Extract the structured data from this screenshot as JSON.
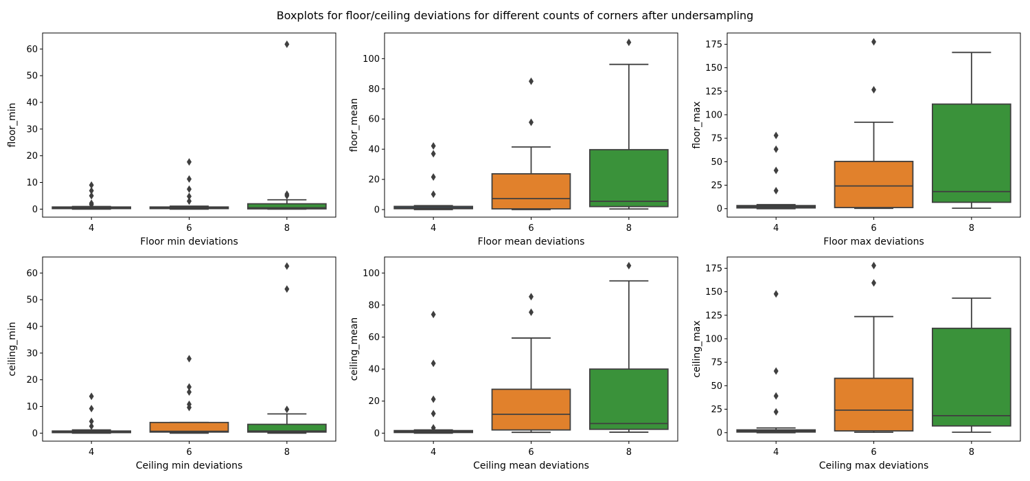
{
  "suptitle": "Boxplots for floor/ceiling deviations for different counts of corners after undersampling",
  "colors": {
    "4": "#3274a1",
    "6": "#e1812c",
    "8": "#3a923a",
    "line": "#3f3f3f"
  },
  "chart_data": [
    {
      "type": "box",
      "title": "",
      "xlabel": "Floor min deviations",
      "ylabel": "floor_min",
      "categories": [
        "4",
        "6",
        "8"
      ],
      "ylim": [
        -3,
        66
      ],
      "yticks": [
        0,
        10,
        20,
        30,
        40,
        50,
        60
      ],
      "boxes": [
        {
          "category": "4",
          "whislo": 0.0,
          "q1": 0.2,
          "median": 0.4,
          "q3": 0.8,
          "whishi": 1.0,
          "fliers": [
            1.7,
            2.2,
            5.0,
            6.9,
            9.0
          ]
        },
        {
          "category": "6",
          "whislo": 0.0,
          "q1": 0.2,
          "median": 0.4,
          "q3": 0.8,
          "whishi": 1.1,
          "fliers": [
            3.0,
            4.8,
            7.5,
            11.3,
            17.7
          ]
        },
        {
          "category": "8",
          "whislo": 0.0,
          "q1": 0.1,
          "median": 0.5,
          "q3": 2.0,
          "whishi": 3.5,
          "fliers": [
            5.0,
            5.6,
            61.8
          ]
        }
      ]
    },
    {
      "type": "box",
      "title": "",
      "xlabel": "Floor mean deviations",
      "ylabel": "floor_mean",
      "categories": [
        "4",
        "6",
        "8"
      ],
      "ylim": [
        -5,
        117
      ],
      "yticks": [
        0,
        20,
        40,
        60,
        80,
        100
      ],
      "boxes": [
        {
          "category": "4",
          "whislo": 0.0,
          "q1": 0.6,
          "median": 1.2,
          "q3": 2.1,
          "whishi": 2.6,
          "fliers": [
            10.2,
            21.6,
            37.0,
            42.2
          ]
        },
        {
          "category": "6",
          "whislo": 0.0,
          "q1": 0.5,
          "median": 7.3,
          "q3": 23.7,
          "whishi": 41.5,
          "fliers": [
            57.8,
            85.0
          ]
        },
        {
          "category": "8",
          "whislo": 0.4,
          "q1": 2.0,
          "median": 5.5,
          "q3": 39.7,
          "whishi": 96.2,
          "fliers": [
            110.8
          ]
        }
      ]
    },
    {
      "type": "box",
      "title": "",
      "xlabel": "Floor max deviations",
      "ylabel": "floor_max",
      "categories": [
        "4",
        "6",
        "8"
      ],
      "ylim": [
        -9,
        187
      ],
      "yticks": [
        0,
        25,
        50,
        75,
        100,
        125,
        150,
        175
      ],
      "boxes": [
        {
          "category": "4",
          "whislo": 0.0,
          "q1": 0.8,
          "median": 2.0,
          "q3": 3.3,
          "whishi": 4.3,
          "fliers": [
            19.2,
            40.7,
            63.3,
            77.9
          ]
        },
        {
          "category": "6",
          "whislo": 0.3,
          "q1": 1.2,
          "median": 24.2,
          "q3": 50.3,
          "whishi": 92.0,
          "fliers": [
            126.6,
            177.6
          ]
        },
        {
          "category": "8",
          "whislo": 0.5,
          "q1": 6.8,
          "median": 18.2,
          "q3": 111.3,
          "whishi": 166.3,
          "fliers": []
        }
      ]
    },
    {
      "type": "box",
      "title": "",
      "xlabel": "Ceiling min deviations",
      "ylabel": "ceiling_min",
      "categories": [
        "4",
        "6",
        "8"
      ],
      "ylim": [
        -3,
        66
      ],
      "yticks": [
        0,
        10,
        20,
        30,
        40,
        50,
        60
      ],
      "boxes": [
        {
          "category": "4",
          "whislo": 0.0,
          "q1": 0.2,
          "median": 0.4,
          "q3": 0.8,
          "whishi": 1.2,
          "fliers": [
            2.6,
            4.4,
            9.2,
            13.8
          ]
        },
        {
          "category": "6",
          "whislo": 0.0,
          "q1": 0.4,
          "median": 0.7,
          "q3": 4.0,
          "whishi": 4.0,
          "fliers": [
            9.6,
            10.8,
            15.4,
            17.3,
            27.9
          ]
        },
        {
          "category": "8",
          "whislo": 0.0,
          "q1": 0.4,
          "median": 0.8,
          "q3": 3.3,
          "whishi": 7.2,
          "fliers": [
            8.9,
            54.0,
            62.6
          ]
        }
      ]
    },
    {
      "type": "box",
      "title": "",
      "xlabel": "Ceiling mean deviations",
      "ylabel": "ceiling_mean",
      "categories": [
        "4",
        "6",
        "8"
      ],
      "ylim": [
        -5,
        110
      ],
      "yticks": [
        0,
        20,
        40,
        60,
        80,
        100
      ],
      "boxes": [
        {
          "category": "4",
          "whislo": 0.0,
          "q1": 0.4,
          "median": 0.9,
          "q3": 1.6,
          "whishi": 2.0,
          "fliers": [
            3.3,
            12.2,
            21.2,
            43.6,
            74.1
          ]
        },
        {
          "category": "6",
          "whislo": 0.5,
          "q1": 2.0,
          "median": 11.8,
          "q3": 27.4,
          "whishi": 59.4,
          "fliers": [
            75.5,
            85.2
          ]
        },
        {
          "category": "8",
          "whislo": 0.6,
          "q1": 2.4,
          "median": 6.0,
          "q3": 40.0,
          "whishi": 95.1,
          "fliers": [
            104.6
          ]
        }
      ]
    },
    {
      "type": "box",
      "title": "",
      "xlabel": "Ceiling max deviations",
      "ylabel": "ceiling_max",
      "categories": [
        "4",
        "6",
        "8"
      ],
      "ylim": [
        -9,
        187
      ],
      "yticks": [
        0,
        25,
        50,
        75,
        100,
        125,
        150,
        175
      ],
      "boxes": [
        {
          "category": "4",
          "whislo": 0.0,
          "q1": 0.7,
          "median": 1.8,
          "q3": 3.0,
          "whishi": 5.1,
          "fliers": [
            22.2,
            39.1,
            65.6,
            147.7
          ]
        },
        {
          "category": "6",
          "whislo": 0.4,
          "q1": 1.9,
          "median": 24.0,
          "q3": 57.9,
          "whishi": 123.6,
          "fliers": [
            159.4,
            177.9
          ]
        },
        {
          "category": "8",
          "whislo": 0.5,
          "q1": 7.2,
          "median": 18.1,
          "q3": 111.1,
          "whishi": 143.2,
          "fliers": []
        }
      ]
    }
  ]
}
